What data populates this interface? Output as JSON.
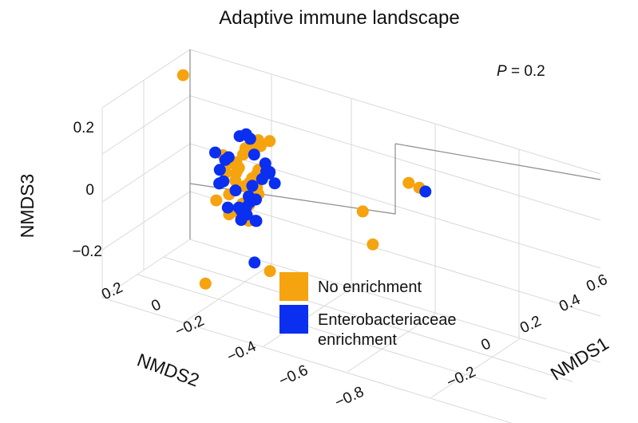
{
  "chart_data": {
    "type": "scatter",
    "title": "Adaptive immune landscape",
    "annotation": {
      "italic": "P",
      "rest": " = 0.2"
    },
    "axes": {
      "x": {
        "label": "NMDS1",
        "ticks": [
          "−0.2",
          "0",
          "0.2",
          "0.4",
          "0.6"
        ]
      },
      "y": {
        "label": "NMDS2",
        "ticks": [
          "0.2",
          "0",
          "−0.2",
          "−0.4",
          "−0.6",
          "−0.8"
        ]
      },
      "z": {
        "label": "NMDS3",
        "ticks": [
          "0.2",
          "0",
          "−0.2"
        ]
      }
    },
    "grid": true,
    "legend_position": "bottom-center",
    "series": [
      {
        "name": "No enrichment",
        "color": "#F5A30F",
        "points": [
          [
            -0.55,
            0.3,
            0.28
          ],
          [
            0.5,
            -0.05,
            0.2
          ],
          [
            0.58,
            -0.1,
            0.21
          ],
          [
            0.58,
            -0.3,
            0.11
          ],
          [
            0.6,
            -0.65,
            -0.14
          ],
          [
            0.75,
            -0.45,
            0.03
          ],
          [
            0.62,
            -0.9,
            -0.18
          ],
          [
            0.05,
            -0.05,
            0.22
          ],
          [
            0.03,
            -0.06,
            0.19
          ],
          [
            -0.06,
            0.03,
            0.18
          ],
          [
            -0.12,
            0.05,
            0.12
          ],
          [
            -0.08,
            0.03,
            0.14
          ],
          [
            -0.1,
            0.02,
            0.1
          ],
          [
            0.1,
            -0.12,
            0.12
          ],
          [
            -0.05,
            0.02,
            0.05
          ],
          [
            -0.22,
            0.08,
            0.05
          ],
          [
            -0.18,
            0.06,
            0.03
          ],
          [
            -0.15,
            0.06,
            0.02
          ],
          [
            -0.14,
            0.04,
            0.05
          ],
          [
            -0.1,
            0.0,
            0.03
          ],
          [
            0.0,
            -0.05,
            0.02
          ],
          [
            -0.02,
            -0.02,
            0.04
          ],
          [
            -0.06,
            0.0,
            -0.01
          ],
          [
            -0.08,
            0.03,
            0.0
          ],
          [
            -0.16,
            0.06,
            -0.01
          ],
          [
            -0.22,
            0.09,
            -0.03
          ],
          [
            -0.18,
            0.08,
            -0.05
          ],
          [
            -0.12,
            0.05,
            -0.05
          ],
          [
            -0.05,
            0.02,
            -0.06
          ],
          [
            0.0,
            -0.04,
            -0.01
          ],
          [
            -0.08,
            0.02,
            -0.12
          ],
          [
            -0.12,
            0.04,
            -0.13
          ],
          [
            -0.2,
            0.08,
            -0.12
          ],
          [
            -0.26,
            0.1,
            -0.17
          ],
          [
            -0.2,
            0.08,
            -0.21
          ],
          [
            -0.14,
            0.05,
            -0.18
          ],
          [
            -0.1,
            0.04,
            -0.2
          ],
          [
            -0.25,
            0.14,
            -0.22
          ],
          [
            -0.14,
            0.08,
            -0.21
          ],
          [
            -0.23,
            0.18,
            -0.24
          ]
        ]
      },
      {
        "name": "Enterobacteriaceae enrichment",
        "color": "#0A2FF0",
        "points": [
          [
            0.6,
            -0.1,
            0.2
          ],
          [
            -0.2,
            0.14,
            0.15
          ],
          [
            -0.23,
            0.15,
            0.13
          ],
          [
            -0.15,
            0.1,
            0.15
          ],
          [
            0.0,
            -0.05,
            0.14
          ],
          [
            0.05,
            -0.05,
            0.08
          ],
          [
            0.1,
            -0.12,
            0.14
          ],
          [
            0.14,
            -0.16,
            0.12
          ],
          [
            0.04,
            -0.04,
            0.07
          ],
          [
            0.03,
            -0.01,
            0.02
          ],
          [
            -0.02,
            0.0,
            0.02
          ],
          [
            -0.3,
            0.14,
            0.03
          ],
          [
            -0.22,
            0.1,
            0.04
          ],
          [
            -0.24,
            0.11,
            0.02
          ],
          [
            -0.23,
            0.08,
            -0.02
          ],
          [
            -0.2,
            0.06,
            -0.06
          ],
          [
            -0.25,
            0.1,
            -0.09
          ],
          [
            -0.17,
            0.07,
            -0.09
          ],
          [
            -0.07,
            0.02,
            -0.03
          ],
          [
            -0.04,
            0.0,
            -0.08
          ],
          [
            -0.06,
            0.0,
            -0.1
          ],
          [
            -0.1,
            0.04,
            -0.09
          ],
          [
            -0.1,
            0.03,
            -0.14
          ],
          [
            -0.07,
            0.0,
            -0.16
          ],
          [
            -0.05,
            0.01,
            -0.18
          ],
          [
            -0.16,
            0.08,
            -0.18
          ],
          [
            -0.15,
            0.06,
            -0.16
          ],
          [
            -0.25,
            0.13,
            -0.2
          ],
          [
            -0.24,
            0.22,
            -0.26
          ],
          [
            -0.28,
            0.21,
            -0.27
          ],
          [
            0.55,
            -0.65,
            -0.12
          ]
        ]
      }
    ]
  }
}
